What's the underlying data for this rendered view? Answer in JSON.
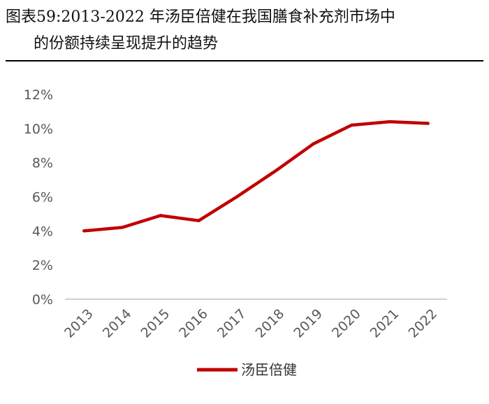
{
  "header": {
    "figure_label": "图表59:",
    "title_line1": "2013-2022 年汤臣倍健在我国膳食补充剂市场中",
    "title_line2": "的份额持续呈现提升的趋势"
  },
  "chart_data": {
    "type": "line",
    "categories": [
      "2013",
      "2014",
      "2015",
      "2016",
      "2017",
      "2018",
      "2019",
      "2020",
      "2021",
      "2022"
    ],
    "series": [
      {
        "name": "汤臣倍健",
        "values": [
          4.0,
          4.2,
          4.9,
          4.6,
          6.0,
          7.5,
          9.1,
          10.2,
          10.4,
          10.3
        ],
        "color": "#C00000"
      }
    ],
    "yticks": [
      "0%",
      "2%",
      "4%",
      "6%",
      "8%",
      "10%",
      "12%"
    ],
    "ylim": [
      0,
      12
    ],
    "ytick_step": 2,
    "grid": false,
    "legend_position": "bottom",
    "axis_color": "#BFBFBF",
    "tick_label_color": "#595959"
  }
}
